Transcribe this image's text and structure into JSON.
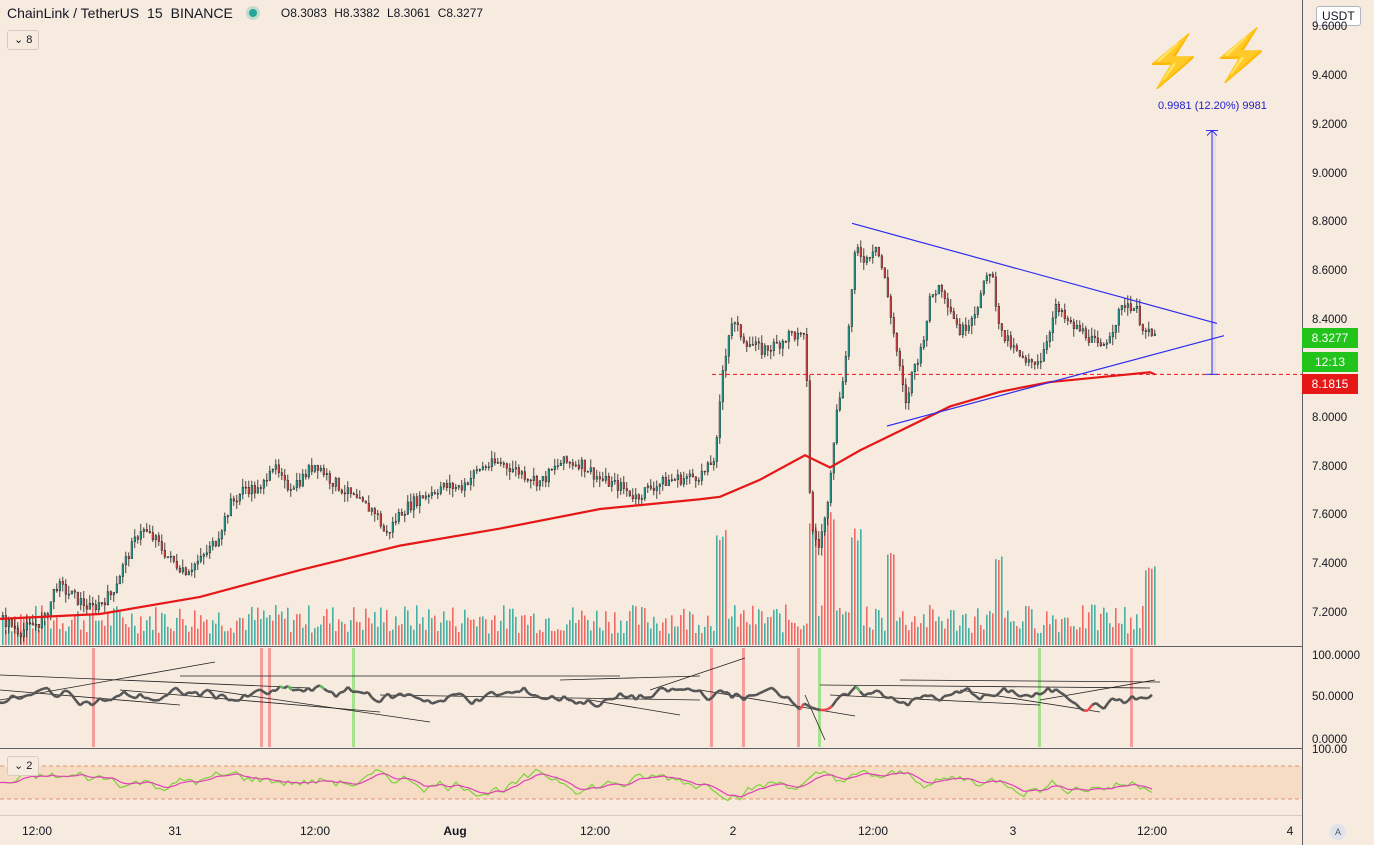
{
  "header": {
    "symbol": "ChainLink / TetherUS",
    "interval": "15",
    "exchange": "BINANCE",
    "open": "O8.3083",
    "high": "H8.3382",
    "low": "L8.3061",
    "close": "C8.3277",
    "indicator_toggle": "8",
    "osc_toggle": "2"
  },
  "currency_button": "USDT",
  "measure_label": "0.9981 (12.20%) 9981",
  "price_axis": [
    "9.6000",
    "9.4000",
    "9.2000",
    "9.0000",
    "8.8000",
    "8.6000",
    "8.4000",
    "8.0000",
    "7.8000",
    "7.6000",
    "7.4000",
    "7.2000"
  ],
  "price_tags": {
    "last_price": "8.3277",
    "countdown": "12:13",
    "ma_value": "8.1815"
  },
  "rsi_axis": [
    "100.0000",
    "50.0000",
    "0.0000"
  ],
  "osc_axis": [
    "100.00"
  ],
  "time_axis": [
    "12:00",
    "31",
    "12:00",
    "Aug",
    "12:00",
    "2",
    "12:00",
    "3",
    "12:00",
    "4"
  ],
  "auto_button": "A",
  "colors": {
    "background": "#f7ebdf",
    "up": "#26a69a",
    "down": "#ef5350",
    "ma": "#e61717",
    "triangle": "#2d2df0",
    "last_price_tag": "#22c31a",
    "ma_tag": "#e61717",
    "osc_band": "#f5d5b5",
    "osc_line1": "#7bd23a",
    "osc_line2": "#e040b8"
  },
  "icons": [
    "lightning-icon",
    "lightning-icon",
    "chevron-down-icon"
  ],
  "chart_data": {
    "type": "candlestick",
    "title": "ChainLink / TetherUS 15 BINANCE",
    "ylim": [
      7.1,
      9.65
    ],
    "x_labels": [
      "12:00",
      "31",
      "12:00",
      "Aug",
      "12:00",
      "2",
      "12:00",
      "3",
      "12:00",
      "4"
    ],
    "price_path": [
      [
        0,
        7.18
      ],
      [
        20,
        7.13
      ],
      [
        45,
        7.18
      ],
      [
        55,
        7.32
      ],
      [
        70,
        7.28
      ],
      [
        90,
        7.22
      ],
      [
        110,
        7.28
      ],
      [
        125,
        7.42
      ],
      [
        140,
        7.55
      ],
      [
        155,
        7.5
      ],
      [
        170,
        7.42
      ],
      [
        185,
        7.38
      ],
      [
        200,
        7.42
      ],
      [
        215,
        7.5
      ],
      [
        230,
        7.65
      ],
      [
        245,
        7.72
      ],
      [
        260,
        7.7
      ],
      [
        270,
        7.82
      ],
      [
        285,
        7.72
      ],
      [
        300,
        7.75
      ],
      [
        315,
        7.82
      ],
      [
        330,
        7.75
      ],
      [
        345,
        7.7
      ],
      [
        360,
        7.65
      ],
      [
        375,
        7.62
      ],
      [
        385,
        7.52
      ],
      [
        400,
        7.62
      ],
      [
        420,
        7.68
      ],
      [
        440,
        7.72
      ],
      [
        460,
        7.72
      ],
      [
        480,
        7.8
      ],
      [
        500,
        7.82
      ],
      [
        520,
        7.78
      ],
      [
        540,
        7.74
      ],
      [
        560,
        7.82
      ],
      [
        580,
        7.82
      ],
      [
        600,
        7.75
      ],
      [
        620,
        7.72
      ],
      [
        635,
        7.68
      ],
      [
        650,
        7.72
      ],
      [
        670,
        7.75
      ],
      [
        690,
        7.76
      ],
      [
        705,
        7.78
      ],
      [
        715,
        7.85
      ],
      [
        722,
        8.2
      ],
      [
        730,
        8.4
      ],
      [
        745,
        8.32
      ],
      [
        760,
        8.28
      ],
      [
        775,
        8.3
      ],
      [
        790,
        8.35
      ],
      [
        805,
        8.32
      ],
      [
        810,
        7.55
      ],
      [
        818,
        7.48
      ],
      [
        825,
        7.6
      ],
      [
        835,
        8.0
      ],
      [
        845,
        8.25
      ],
      [
        855,
        8.7
      ],
      [
        865,
        8.65
      ],
      [
        875,
        8.72
      ],
      [
        885,
        8.55
      ],
      [
        895,
        8.3
      ],
      [
        905,
        8.05
      ],
      [
        912,
        8.2
      ],
      [
        920,
        8.28
      ],
      [
        930,
        8.5
      ],
      [
        940,
        8.55
      ],
      [
        950,
        8.45
      ],
      [
        960,
        8.35
      ],
      [
        975,
        8.45
      ],
      [
        990,
        8.62
      ],
      [
        1000,
        8.35
      ],
      [
        1010,
        8.3
      ],
      [
        1025,
        8.22
      ],
      [
        1040,
        8.25
      ],
      [
        1055,
        8.45
      ],
      [
        1070,
        8.38
      ],
      [
        1085,
        8.35
      ],
      [
        1100,
        8.28
      ],
      [
        1115,
        8.4
      ],
      [
        1125,
        8.48
      ],
      [
        1135,
        8.45
      ],
      [
        1145,
        8.35
      ],
      [
        1155,
        8.33
      ]
    ],
    "moving_average": [
      [
        0,
        7.18
      ],
      [
        100,
        7.2
      ],
      [
        200,
        7.27
      ],
      [
        300,
        7.38
      ],
      [
        400,
        7.48
      ],
      [
        500,
        7.55
      ],
      [
        600,
        7.63
      ],
      [
        700,
        7.67
      ],
      [
        720,
        7.68
      ],
      [
        760,
        7.75
      ],
      [
        805,
        7.85
      ],
      [
        830,
        7.8
      ],
      [
        860,
        7.87
      ],
      [
        900,
        7.95
      ],
      [
        950,
        8.05
      ],
      [
        1000,
        8.11
      ],
      [
        1050,
        8.15
      ],
      [
        1100,
        8.17
      ],
      [
        1150,
        8.19
      ],
      [
        1155,
        8.1815
      ]
    ],
    "triangle": {
      "upper": [
        [
          852,
          8.8
        ],
        [
          1217,
          8.39
        ]
      ],
      "lower": [
        [
          887,
          7.97
        ],
        [
          1224,
          8.34
        ]
      ]
    },
    "measure": {
      "x": 1212,
      "from": 8.1815,
      "to": 9.18
    },
    "volume_spikes": [
      [
        720,
        7.55
      ],
      [
        812,
        7.58
      ],
      [
        828,
        7.62
      ],
      [
        855,
        7.55
      ],
      [
        890,
        7.45
      ],
      [
        998,
        7.45
      ],
      [
        1150,
        7.42
      ]
    ],
    "rsi_ylim": [
      0,
      100
    ],
    "osc_band": [
      20,
      80
    ]
  }
}
